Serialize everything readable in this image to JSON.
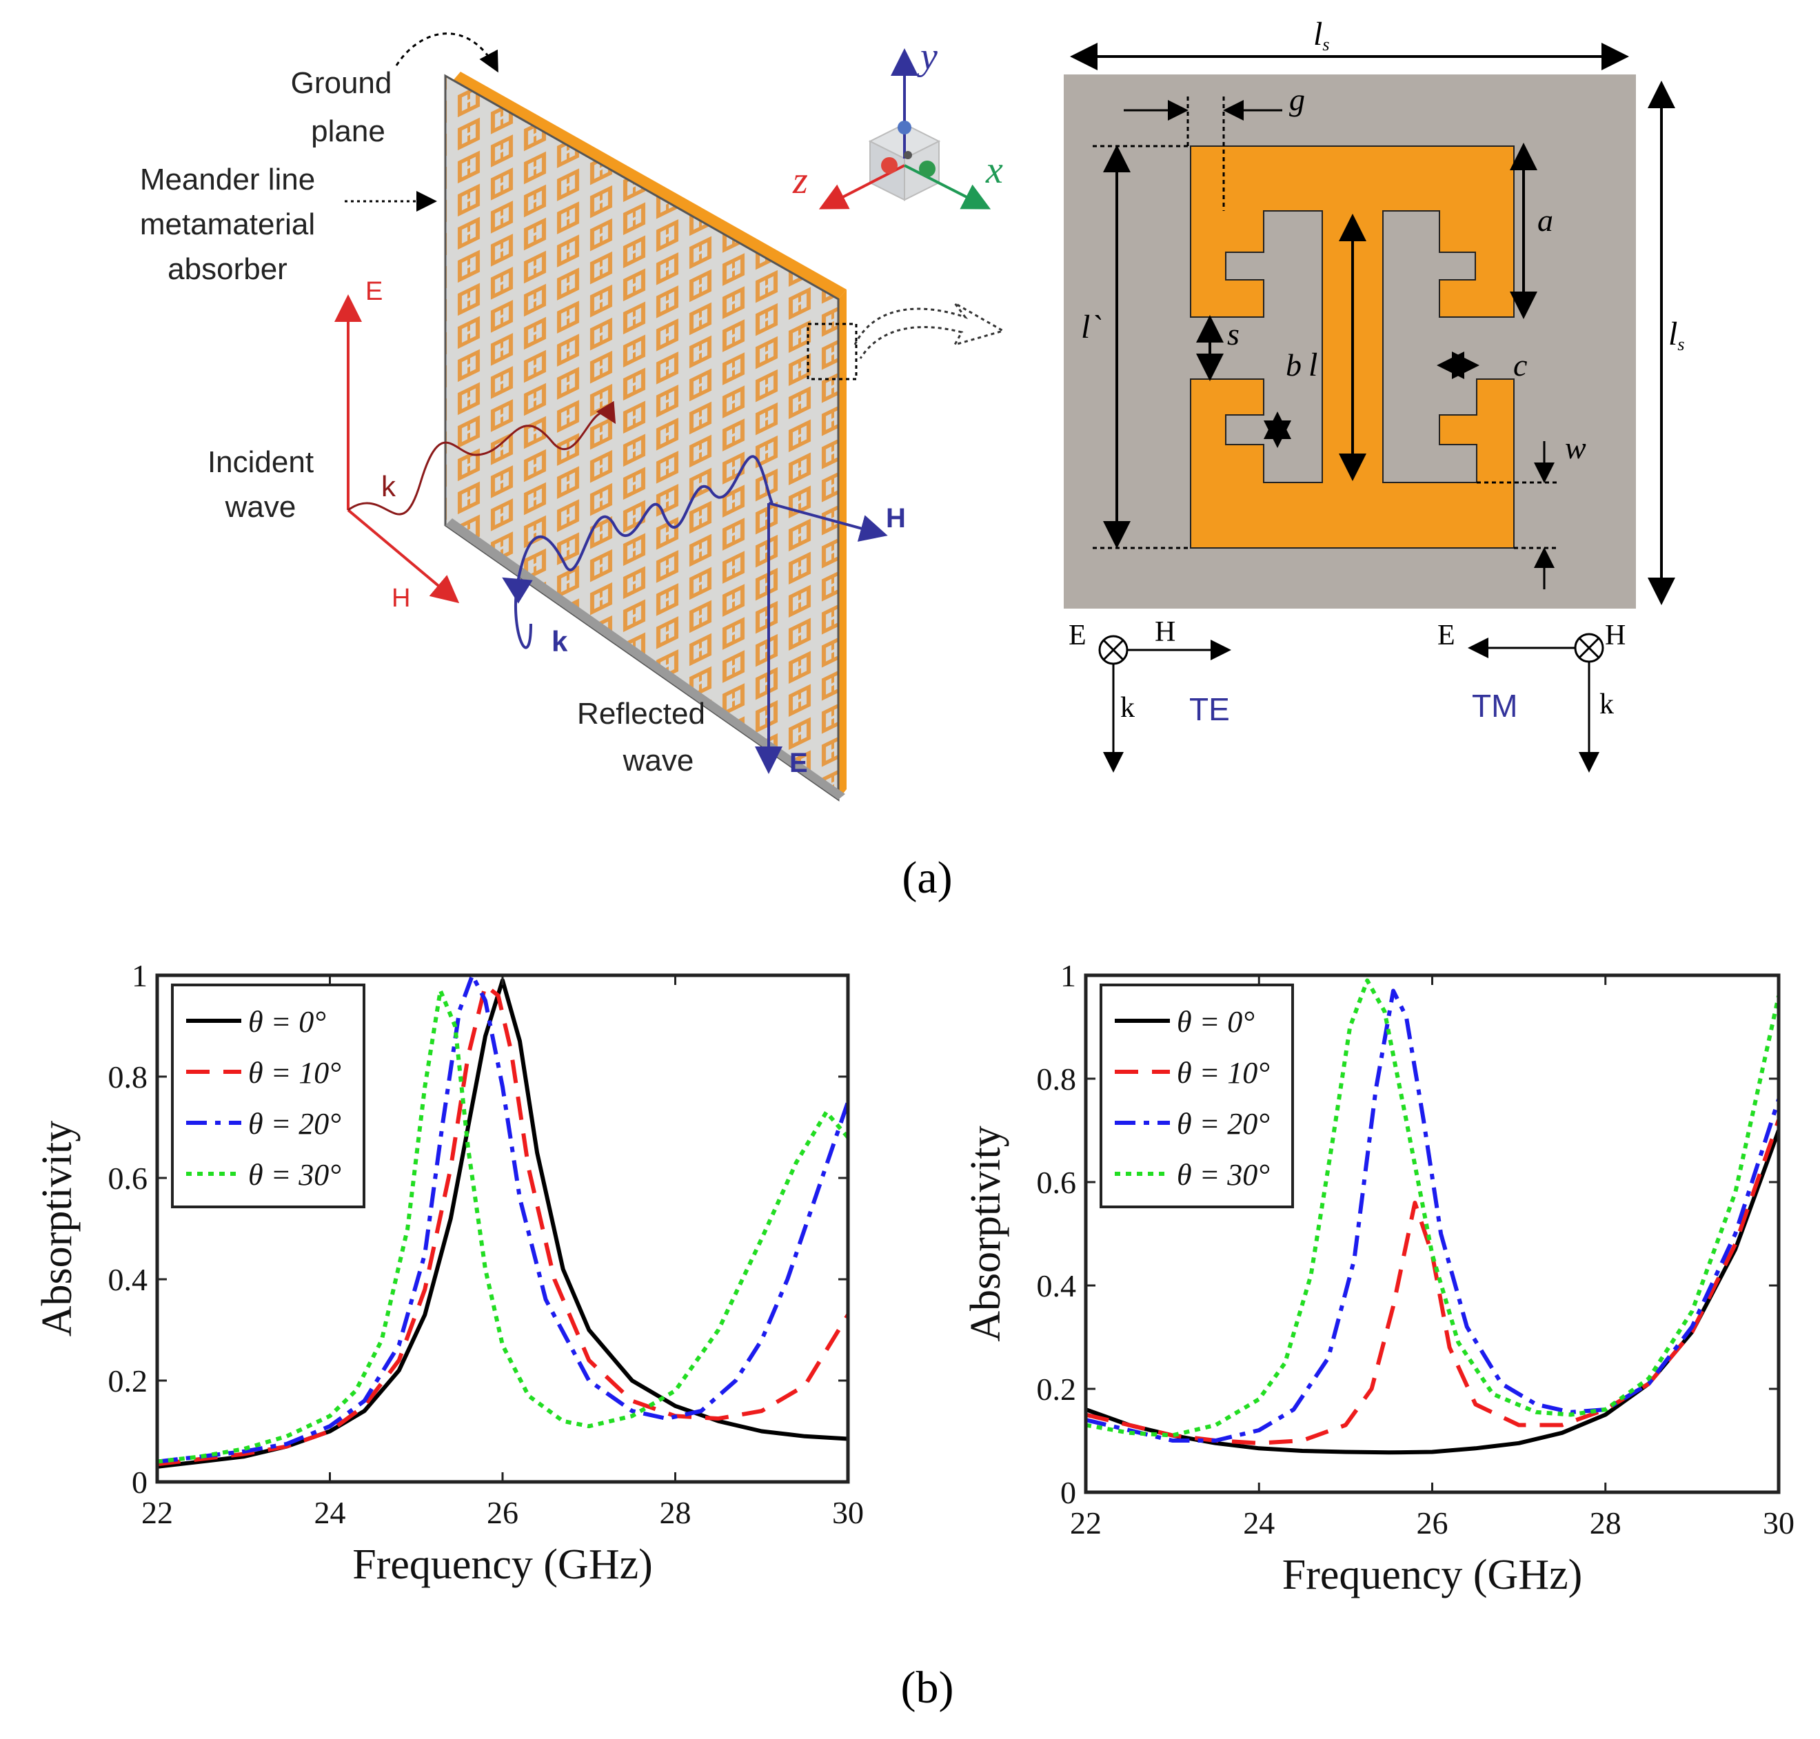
{
  "panel_a": {
    "caption": "(a)",
    "labels": {
      "ground_plane_1": "Ground",
      "ground_plane_2": "plane",
      "absorber_1": "Meander line",
      "absorber_2": "metamaterial",
      "absorber_3": "absorber",
      "incident_1": "Incident",
      "incident_2": "wave",
      "reflected_1": "Reflected",
      "reflected_2": "wave",
      "E_inc": "E",
      "H_inc": "H",
      "k_inc": "k",
      "E_ref": "E",
      "H_ref": "H",
      "k_ref": "k",
      "axis_x": "x",
      "axis_y": "y",
      "axis_z": "z"
    },
    "unit_cell": {
      "ls_top": "l",
      "ls_top_sub": "s",
      "ls_right": "l",
      "ls_right_sub": "s",
      "g": "g",
      "a": "a",
      "s": "s",
      "b": "b",
      "c": "c",
      "w": "w",
      "l": "l",
      "l_prime": "l`"
    },
    "te": {
      "E": "E",
      "H": "H",
      "k": "k",
      "mode": "TE"
    },
    "tm": {
      "E": "E",
      "H": "H",
      "k": "k",
      "mode": "TM"
    },
    "colors": {
      "metal": "#f39a1e",
      "substrate": "#b2aca6",
      "red": "#dd2a2a",
      "blue": "#33339b",
      "green": "#1f9a55"
    }
  },
  "panel_b": {
    "caption": "(b)"
  },
  "chart_data": [
    {
      "type": "line",
      "title": "",
      "xlabel": "Frequency (GHz)",
      "ylabel": "Absorptivity",
      "xlim": [
        22,
        30
      ],
      "ylim": [
        0,
        1
      ],
      "xticks": [
        "22",
        "24",
        "26",
        "28",
        "30"
      ],
      "yticks": [
        "0",
        "0.2",
        "0.4",
        "0.6",
        "0.8",
        "1"
      ],
      "legend": "top-left",
      "series": [
        {
          "name": "θ = 0°",
          "color": "#000000",
          "dash": "solid",
          "x": [
            22,
            22.5,
            23,
            23.5,
            24,
            24.4,
            24.8,
            25.1,
            25.4,
            25.6,
            25.8,
            26.0,
            26.2,
            26.4,
            26.7,
            27.0,
            27.5,
            28,
            28.5,
            29,
            29.5,
            30
          ],
          "y": [
            0.03,
            0.04,
            0.05,
            0.07,
            0.1,
            0.14,
            0.22,
            0.33,
            0.52,
            0.7,
            0.88,
            0.99,
            0.87,
            0.65,
            0.42,
            0.3,
            0.2,
            0.15,
            0.12,
            0.1,
            0.09,
            0.085
          ]
        },
        {
          "name": "θ = 10°",
          "color": "#ee1c1c",
          "dash": "dash",
          "x": [
            22,
            22.5,
            23,
            23.5,
            24,
            24.4,
            24.8,
            25.1,
            25.4,
            25.6,
            25.8,
            25.95,
            26.1,
            26.3,
            26.6,
            27.0,
            27.5,
            28.0,
            28.5,
            29.0,
            29.5,
            30
          ],
          "y": [
            0.035,
            0.045,
            0.055,
            0.07,
            0.1,
            0.15,
            0.24,
            0.38,
            0.62,
            0.84,
            0.98,
            0.96,
            0.85,
            0.62,
            0.4,
            0.24,
            0.16,
            0.13,
            0.125,
            0.14,
            0.19,
            0.33
          ]
        },
        {
          "name": "θ = 20°",
          "color": "#1c1cee",
          "dash": "dashdot",
          "x": [
            22,
            22.5,
            23,
            23.5,
            24,
            24.4,
            24.8,
            25.1,
            25.3,
            25.5,
            25.65,
            25.8,
            26.0,
            26.2,
            26.5,
            27.0,
            27.5,
            27.9,
            28.3,
            28.7,
            29.0,
            29.3,
            29.6,
            30
          ],
          "y": [
            0.04,
            0.05,
            0.06,
            0.075,
            0.11,
            0.16,
            0.27,
            0.45,
            0.7,
            0.93,
            1.0,
            0.95,
            0.78,
            0.56,
            0.36,
            0.2,
            0.14,
            0.125,
            0.14,
            0.2,
            0.28,
            0.4,
            0.55,
            0.75
          ]
        },
        {
          "name": "θ = 30°",
          "color": "#22dd22",
          "dash": "dot",
          "x": [
            22,
            22.5,
            23,
            23.5,
            24,
            24.3,
            24.6,
            24.9,
            25.1,
            25.28,
            25.45,
            25.6,
            25.8,
            26.0,
            26.3,
            26.7,
            27.0,
            27.5,
            28.0,
            28.5,
            29.0,
            29.4,
            29.75,
            30
          ],
          "y": [
            0.04,
            0.05,
            0.065,
            0.09,
            0.13,
            0.18,
            0.28,
            0.5,
            0.78,
            0.97,
            0.9,
            0.66,
            0.42,
            0.27,
            0.17,
            0.12,
            0.11,
            0.13,
            0.18,
            0.3,
            0.48,
            0.63,
            0.73,
            0.68
          ]
        }
      ]
    },
    {
      "type": "line",
      "title": "",
      "xlabel": "Frequency (GHz)",
      "ylabel": "Absorptivity",
      "xlim": [
        22,
        30
      ],
      "ylim": [
        0,
        1
      ],
      "xticks": [
        "22",
        "24",
        "26",
        "28",
        "30"
      ],
      "yticks": [
        "0",
        "0.2",
        "0.4",
        "0.6",
        "0.8",
        "1"
      ],
      "legend": "top-left",
      "series": [
        {
          "name": "θ = 0°",
          "color": "#000000",
          "dash": "solid",
          "x": [
            22,
            22.5,
            23,
            23.5,
            24,
            24.5,
            25,
            25.5,
            26,
            26.5,
            27,
            27.5,
            28,
            28.5,
            29,
            29.5,
            30
          ],
          "y": [
            0.16,
            0.13,
            0.11,
            0.095,
            0.085,
            0.08,
            0.078,
            0.077,
            0.078,
            0.085,
            0.095,
            0.115,
            0.15,
            0.21,
            0.31,
            0.47,
            0.7
          ]
        },
        {
          "name": "θ = 10°",
          "color": "#ee1c1c",
          "dash": "dash",
          "x": [
            22,
            22.5,
            23,
            23.5,
            24,
            24.5,
            25,
            25.3,
            25.55,
            25.8,
            26.0,
            26.2,
            26.5,
            27,
            27.5,
            28,
            28.5,
            29,
            29.5,
            30
          ],
          "y": [
            0.15,
            0.13,
            0.11,
            0.1,
            0.095,
            0.1,
            0.13,
            0.2,
            0.36,
            0.56,
            0.46,
            0.28,
            0.17,
            0.13,
            0.13,
            0.16,
            0.21,
            0.31,
            0.48,
            0.72
          ]
        },
        {
          "name": "θ = 20°",
          "color": "#1c1cee",
          "dash": "dashdot",
          "x": [
            22,
            22.5,
            23,
            23.5,
            24,
            24.4,
            24.8,
            25.1,
            25.35,
            25.55,
            25.7,
            25.9,
            26.1,
            26.4,
            26.8,
            27.2,
            27.6,
            28,
            28.5,
            29,
            29.5,
            30
          ],
          "y": [
            0.14,
            0.12,
            0.1,
            0.1,
            0.12,
            0.16,
            0.26,
            0.45,
            0.78,
            0.97,
            0.92,
            0.72,
            0.5,
            0.32,
            0.21,
            0.17,
            0.155,
            0.16,
            0.21,
            0.32,
            0.5,
            0.76
          ]
        },
        {
          "name": "θ = 30°",
          "color": "#22dd22",
          "dash": "dot",
          "x": [
            22,
            22.5,
            23,
            23.5,
            24,
            24.3,
            24.6,
            24.85,
            25.05,
            25.25,
            25.45,
            25.7,
            26.0,
            26.3,
            26.7,
            27.2,
            27.6,
            28,
            28.5,
            29,
            29.5,
            30
          ],
          "y": [
            0.13,
            0.115,
            0.11,
            0.13,
            0.18,
            0.25,
            0.42,
            0.68,
            0.9,
            0.99,
            0.93,
            0.72,
            0.46,
            0.29,
            0.19,
            0.155,
            0.15,
            0.16,
            0.22,
            0.35,
            0.58,
            0.96
          ]
        }
      ]
    }
  ]
}
